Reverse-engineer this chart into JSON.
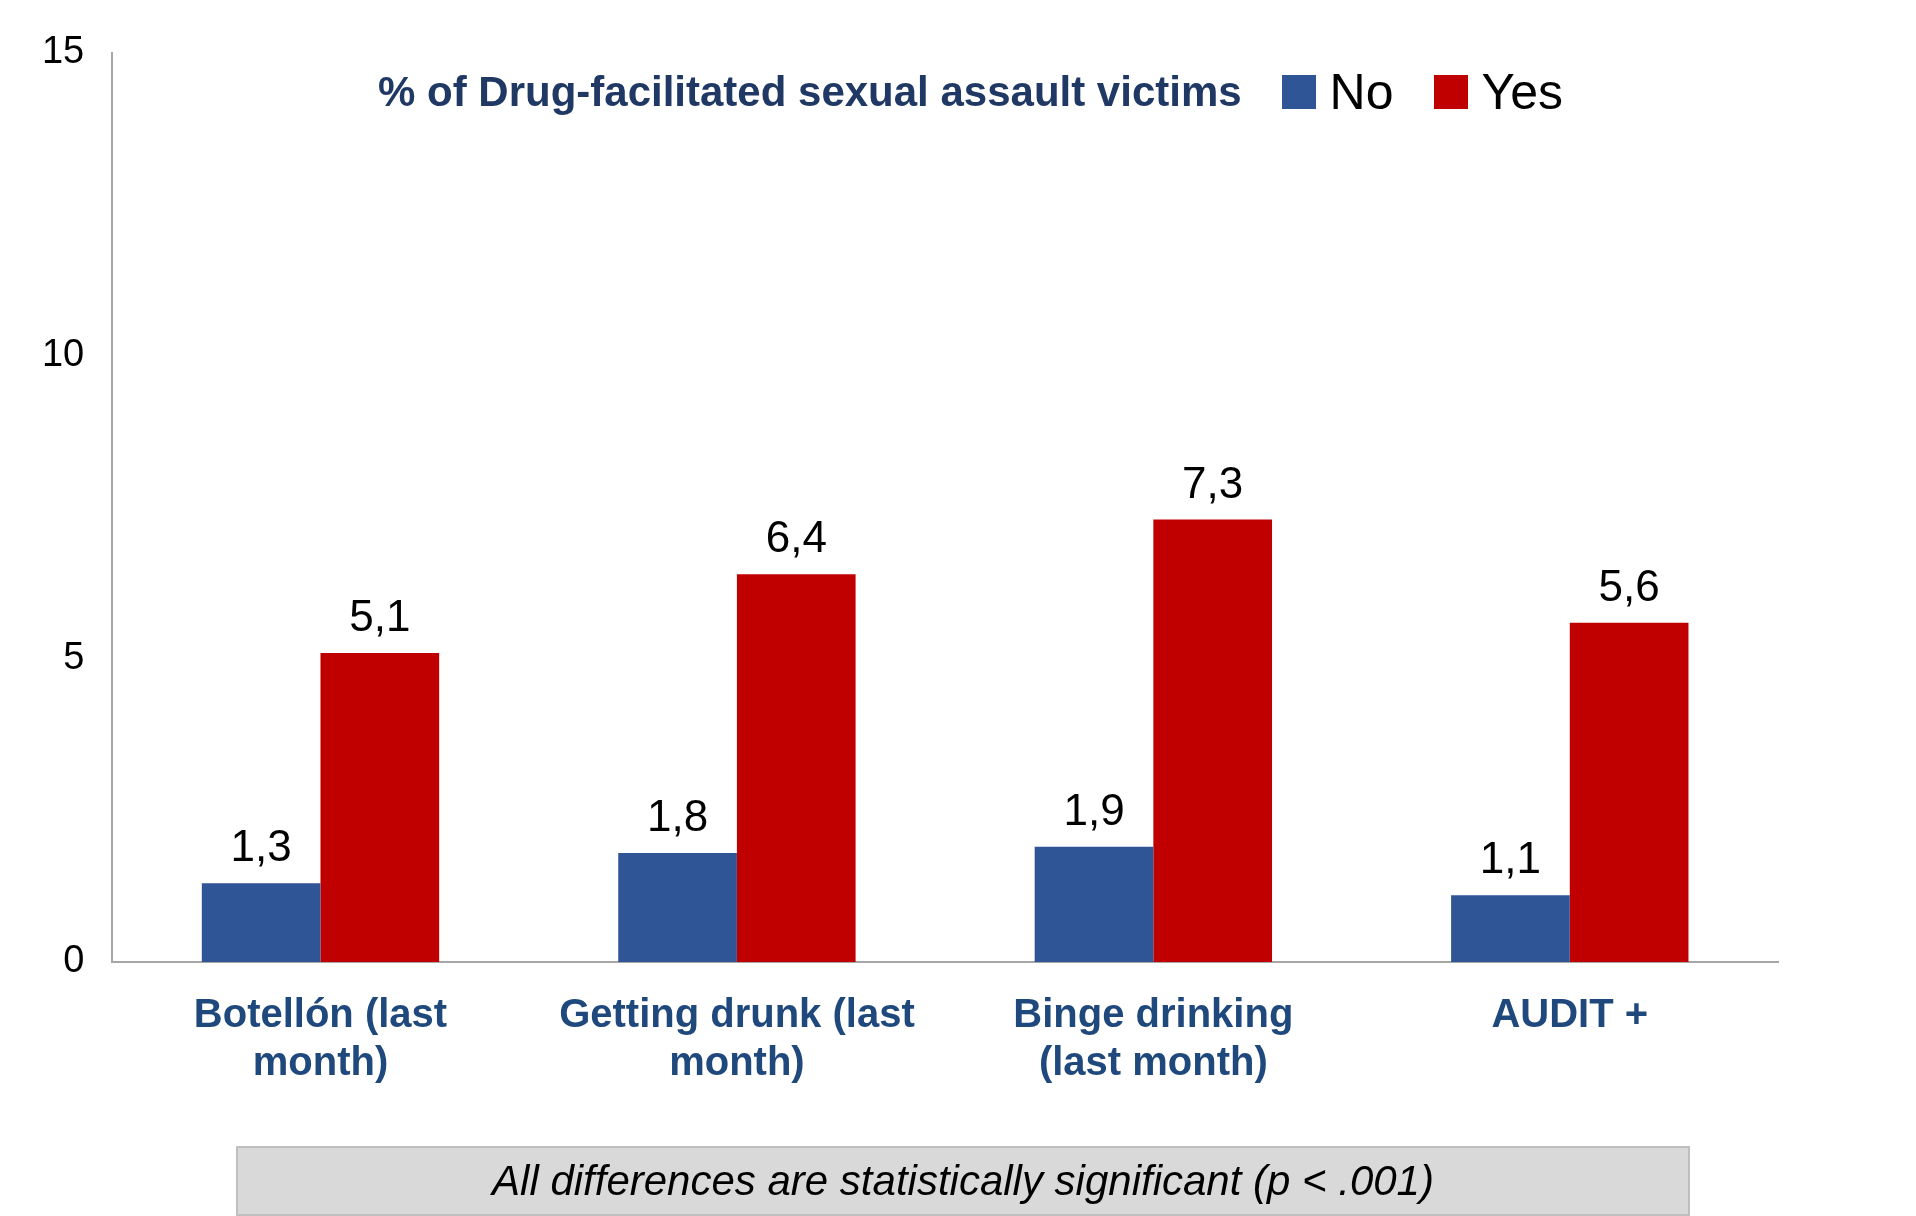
{
  "chart_data": {
    "type": "bar",
    "legend_title": "% of Drug-facilitated sexual assault victims",
    "categories": [
      "Botellón (last month)",
      "Getting drunk (last month)",
      "Binge drinking (last month)",
      "AUDIT +"
    ],
    "series": [
      {
        "name": "No",
        "color": "#2f5597",
        "values": [
          1.3,
          1.8,
          1.9,
          1.1
        ],
        "value_labels": [
          "1,3",
          "1,8",
          "1,9",
          "1,1"
        ]
      },
      {
        "name": "Yes",
        "color": "#c00000",
        "values": [
          5.1,
          6.4,
          7.3,
          5.6
        ],
        "value_labels": [
          "5,1",
          "6,4",
          "7,3",
          "5,6"
        ]
      }
    ],
    "ylim": [
      0,
      15
    ],
    "yticks": [
      0,
      5,
      10,
      15
    ],
    "grid": false,
    "legend": "top",
    "annotations": [
      "All differences are statistically significant (p < .001)"
    ]
  }
}
